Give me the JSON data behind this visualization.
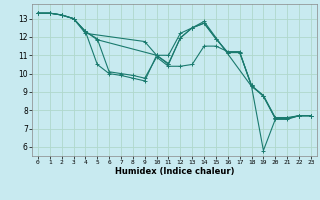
{
  "title": "",
  "xlabel": "Humidex (Indice chaleur)",
  "ylabel": "",
  "xlim": [
    -0.5,
    23.5
  ],
  "ylim": [
    5.5,
    13.8
  ],
  "xticks": [
    0,
    1,
    2,
    3,
    4,
    5,
    6,
    7,
    8,
    9,
    10,
    11,
    12,
    13,
    14,
    15,
    16,
    17,
    18,
    19,
    20,
    21,
    22,
    23
  ],
  "yticks": [
    6,
    7,
    8,
    9,
    10,
    11,
    12,
    13
  ],
  "background_color": "#c8eaf0",
  "grid_color": "#b0d8cc",
  "line_color": "#1a7a6e",
  "lines": [
    {
      "x": [
        0,
        1,
        2,
        3,
        4,
        5,
        6,
        7,
        8,
        9,
        10,
        11,
        12,
        13,
        14,
        18,
        19,
        20,
        21,
        22,
        23
      ],
      "y": [
        13.3,
        13.3,
        13.2,
        13.0,
        12.3,
        10.5,
        10.0,
        9.9,
        9.75,
        9.6,
        11.0,
        11.0,
        12.2,
        12.5,
        12.85,
        9.3,
        5.8,
        7.5,
        7.5,
        7.7,
        7.7
      ]
    },
    {
      "x": [
        0,
        1,
        2,
        3,
        4,
        5,
        6,
        7,
        8,
        9,
        10,
        11,
        12,
        13,
        14,
        15,
        16,
        17,
        18,
        19,
        20,
        21,
        22,
        23
      ],
      "y": [
        13.3,
        13.3,
        13.2,
        13.0,
        12.3,
        11.9,
        10.1,
        10.0,
        9.9,
        9.75,
        10.9,
        10.4,
        10.4,
        10.5,
        11.5,
        11.5,
        11.2,
        11.2,
        9.3,
        8.8,
        7.6,
        7.6,
        7.7,
        7.7
      ]
    },
    {
      "x": [
        0,
        1,
        2,
        3,
        4,
        5,
        10,
        11,
        12,
        13,
        14,
        15,
        16,
        17,
        18,
        19,
        20,
        21,
        22,
        23
      ],
      "y": [
        13.3,
        13.3,
        13.2,
        13.0,
        12.3,
        11.85,
        11.0,
        10.55,
        11.95,
        12.5,
        12.75,
        11.9,
        11.15,
        11.15,
        9.35,
        8.8,
        7.55,
        7.55,
        7.7,
        7.7
      ]
    },
    {
      "x": [
        0,
        1,
        2,
        3,
        4,
        9,
        10,
        11,
        12,
        13,
        14,
        15,
        16,
        17,
        18,
        19,
        20,
        21,
        22,
        23
      ],
      "y": [
        13.3,
        13.3,
        13.2,
        13.0,
        12.2,
        11.75,
        11.0,
        10.5,
        11.95,
        12.5,
        12.75,
        11.9,
        11.15,
        11.15,
        9.35,
        8.75,
        7.55,
        7.55,
        7.7,
        7.7
      ]
    }
  ]
}
